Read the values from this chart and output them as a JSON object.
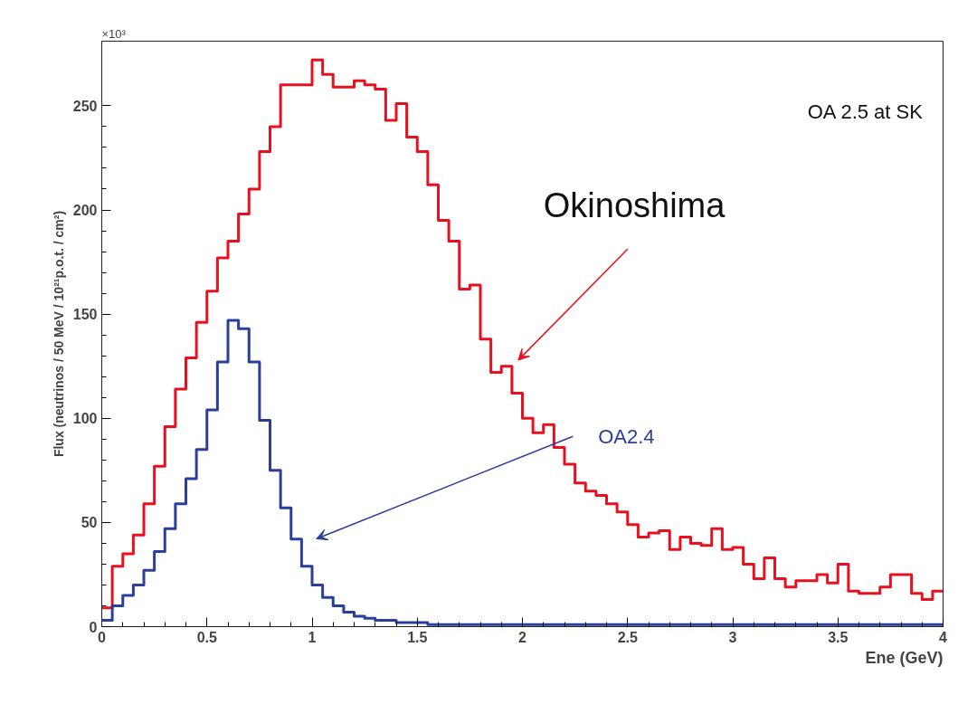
{
  "chart_data": {
    "type": "histogram",
    "xlabel": "Ene (GeV)",
    "ylabel": "Flux (neutrinos / 50 MeV / 10²¹p.o.t. / cm²)",
    "bins": [
      0,
      0.05,
      0.1,
      0.15,
      0.2,
      0.25,
      0.3,
      0.35,
      0.4,
      0.45,
      0.5,
      0.55,
      0.6,
      0.65,
      0.7,
      0.75,
      0.8,
      0.85,
      0.9,
      0.95,
      1,
      1.05,
      1.1,
      1.15,
      1.2,
      1.25,
      1.3,
      1.35,
      1.4,
      1.45,
      1.5,
      1.55,
      1.6,
      1.65,
      1.7,
      1.75,
      1.8,
      1.85,
      1.9,
      1.95,
      2,
      2.05,
      2.1,
      2.15,
      2.2,
      2.25,
      2.3,
      2.35,
      2.4,
      2.45,
      2.5,
      2.55,
      2.6,
      2.65,
      2.7,
      2.75,
      2.8,
      2.85,
      2.9,
      2.95,
      3,
      3.05,
      3.1,
      3.15,
      3.2,
      3.25,
      3.3,
      3.35,
      3.4,
      3.45,
      3.5,
      3.55,
      3.6,
      3.65,
      3.7,
      3.75,
      3.8,
      3.85,
      3.9,
      3.95,
      4
    ],
    "series": [
      {
        "color": "#e8101e",
        "values": [
          9,
          29,
          35,
          44,
          59,
          77,
          96,
          114,
          129,
          146,
          161,
          177,
          185,
          198,
          210,
          228,
          240,
          260,
          260,
          260,
          272,
          265,
          259,
          259,
          262,
          260,
          258,
          243,
          251,
          235,
          228,
          212,
          195,
          185,
          162,
          164,
          138,
          122,
          125,
          112,
          100,
          93,
          97,
          86,
          78,
          69,
          65,
          63,
          59,
          55,
          49,
          43,
          45,
          46,
          37,
          43,
          40,
          39,
          47,
          37,
          38,
          30,
          23,
          33,
          23,
          19,
          22,
          22,
          25,
          21,
          30,
          17,
          16,
          16,
          19,
          25,
          25,
          16,
          13,
          17
        ]
      },
      {
        "color": "#2a3f9a",
        "values": [
          3,
          10,
          15,
          20,
          27,
          36,
          47,
          59,
          71,
          85,
          104,
          127,
          147,
          143,
          127,
          99,
          75,
          57,
          42,
          29,
          20,
          14,
          10,
          7,
          5,
          4,
          3,
          3,
          2,
          2,
          2,
          1,
          1,
          1,
          1,
          1,
          1,
          1,
          1,
          1,
          1,
          1,
          1,
          1,
          1,
          1,
          1,
          1,
          1,
          1,
          1,
          1,
          1,
          1,
          1,
          1,
          1,
          1,
          1,
          1,
          1,
          1,
          1,
          1,
          1,
          1,
          1,
          1,
          1,
          1,
          1,
          1,
          1,
          1,
          1,
          1,
          1,
          1,
          1,
          1
        ]
      }
    ],
    "xlim": [
      0,
      4
    ],
    "ylim": [
      0,
      281
    ],
    "xticks": [
      0,
      0.5,
      1,
      1.5,
      2,
      2.5,
      3,
      3.5,
      4
    ],
    "yticks": [
      0,
      50,
      100,
      150,
      200,
      250
    ],
    "grid": false,
    "annotations": [
      "×10³",
      "OA 2.5 at SK",
      "Okinoshima",
      "OA2.4"
    ]
  }
}
